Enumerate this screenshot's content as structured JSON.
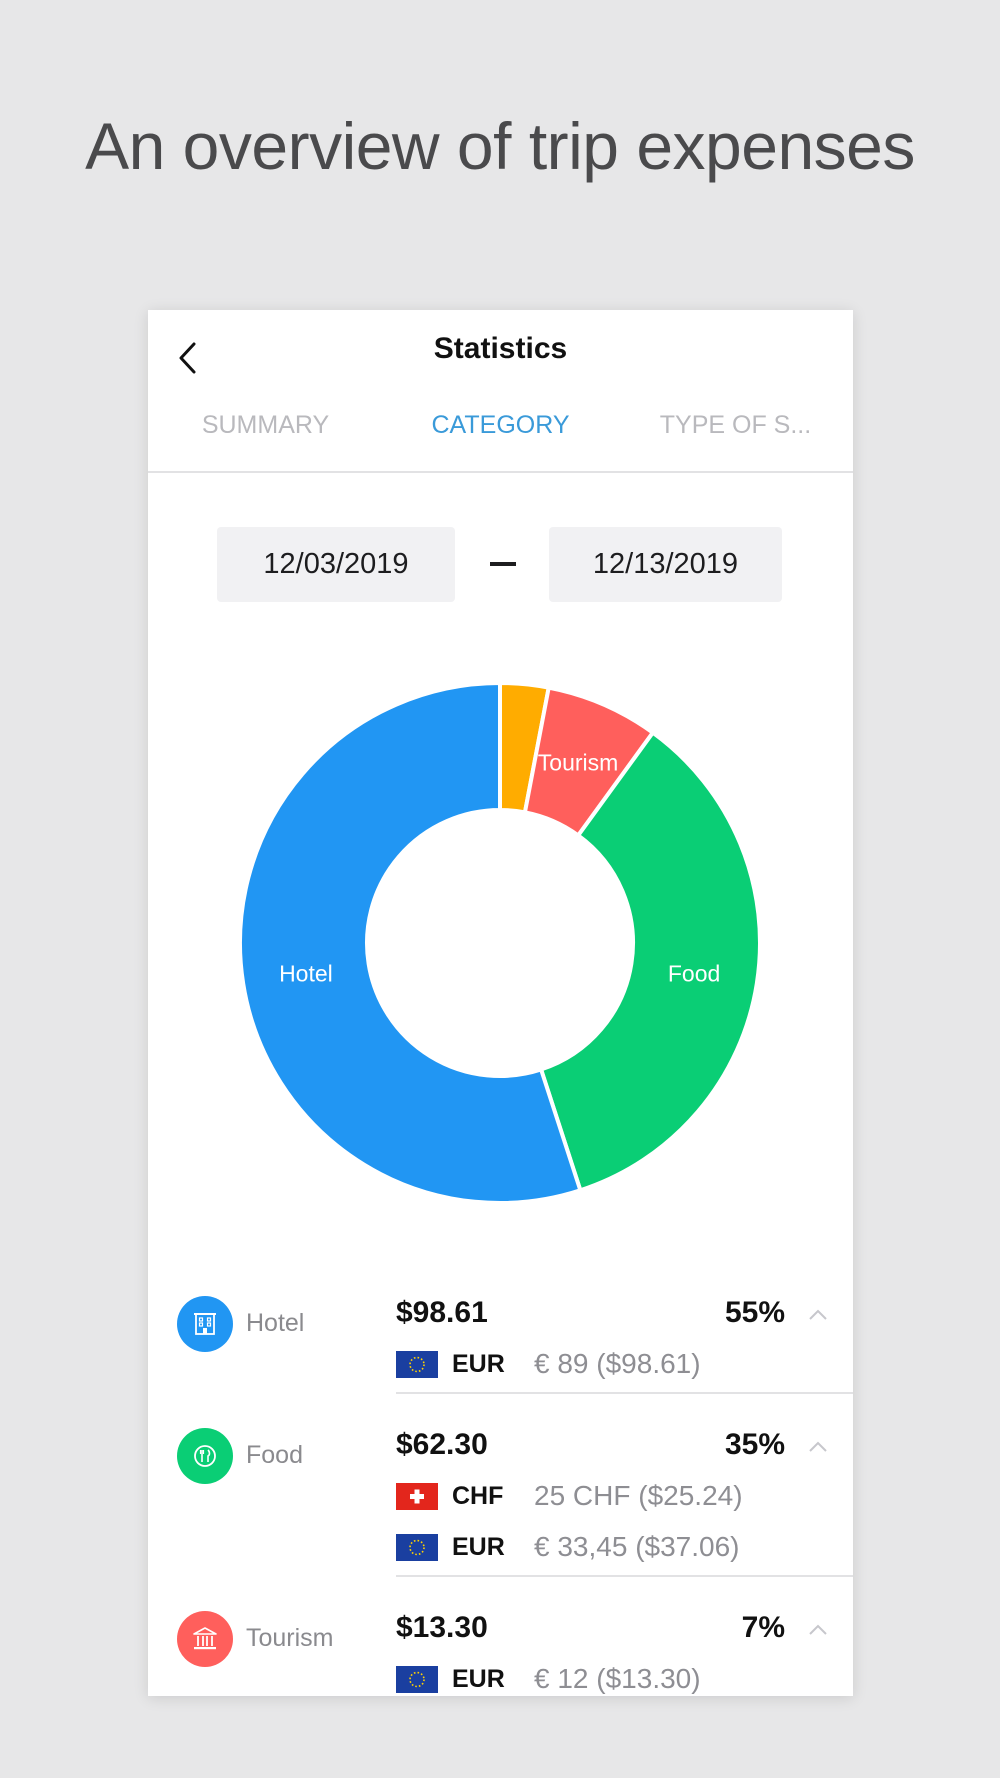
{
  "headline": "An overview of trip expenses",
  "header": {
    "title": "Statistics"
  },
  "tabs": [
    {
      "label": "SUMMARY",
      "active": false
    },
    {
      "label": "CATEGORY",
      "active": true
    },
    {
      "label": "TYPE OF S...",
      "active": false
    }
  ],
  "dates": {
    "from": "12/03/2019",
    "to": "12/13/2019"
  },
  "colors": {
    "accent": "#3a9ad9",
    "hotel": "#2196f3",
    "food": "#0ace75",
    "tourism": "#ff5f5c",
    "other": "#ffac00"
  },
  "chart_data": {
    "type": "pie",
    "categories": [
      "",
      "Tourism",
      "Food",
      "Hotel"
    ],
    "values": [
      3,
      7,
      35,
      55
    ],
    "colors": [
      "#ffac00",
      "#ff5f5c",
      "#0ace75",
      "#2196f3"
    ],
    "labels": [
      "",
      "Tourism",
      "Food",
      "Hotel"
    ]
  },
  "categories": [
    {
      "name": "Hotel",
      "icon": "hotel-icon",
      "amount": "$98.61",
      "percent": "55%",
      "currencies": [
        {
          "flag": "eu-flag-icon",
          "code": "EUR",
          "detail": "€ 89 ($98.61)"
        }
      ]
    },
    {
      "name": "Food",
      "icon": "food-icon",
      "amount": "$62.30",
      "percent": "35%",
      "currencies": [
        {
          "flag": "swiss-flag-icon",
          "code": "CHF",
          "detail": "25 CHF ($25.24)"
        },
        {
          "flag": "eu-flag-icon",
          "code": "EUR",
          "detail": "€ 33,45 ($37.06)"
        }
      ]
    },
    {
      "name": "Tourism",
      "icon": "tourism-icon",
      "amount": "$13.30",
      "percent": "7%",
      "currencies": [
        {
          "flag": "eu-flag-icon",
          "code": "EUR",
          "detail": "€ 12 ($13.30)"
        }
      ]
    }
  ]
}
